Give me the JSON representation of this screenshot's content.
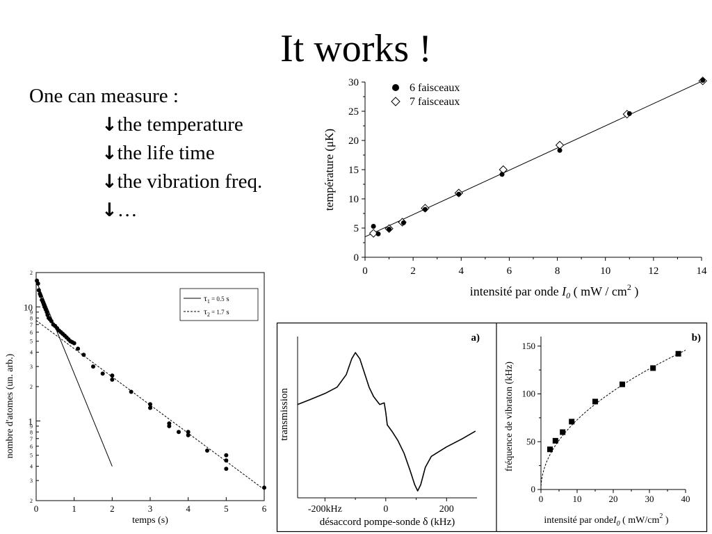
{
  "slide": {
    "title": "It works !",
    "intro": "One can measure :",
    "bullet_glyph": "↓",
    "bullets": [
      "the temperature",
      "the life time",
      "the vibration freq.",
      "…"
    ]
  },
  "chart_data": [
    {
      "type": "scatter",
      "id": "temperature",
      "xlabel": "intensité par onde",
      "xlabel_var": "I",
      "xlabel_var_sub": "0",
      "xlabel_unit": "( mW / cm",
      "xlabel_unit_sup": "2",
      "xlabel_unit_end": ")",
      "ylabel": "température (μK)",
      "xlim": [
        0,
        14
      ],
      "ylim": [
        0,
        30
      ],
      "xticks": [
        0,
        2,
        4,
        6,
        8,
        10,
        12,
        14
      ],
      "yticks": [
        0,
        5,
        10,
        15,
        20,
        25,
        30
      ],
      "legend_position": "top-left",
      "series": [
        {
          "name": "6 faisceaux",
          "marker": "filled-circle",
          "x": [
            0.35,
            0.55,
            1.0,
            1.6,
            2.5,
            3.9,
            5.7,
            8.1,
            11.0,
            14.05
          ],
          "y": [
            5.3,
            4.0,
            4.8,
            5.9,
            8.2,
            10.8,
            14.2,
            18.3,
            24.6,
            30.3
          ]
        },
        {
          "name": "7 faisceaux",
          "marker": "open-diamond",
          "x": [
            0.35,
            1.0,
            1.55,
            2.5,
            3.9,
            5.75,
            8.1,
            10.9,
            14.05
          ],
          "y": [
            4.1,
            4.9,
            6.0,
            8.4,
            11.0,
            15.0,
            19.2,
            24.5,
            30.2
          ]
        }
      ],
      "fit_line": {
        "x": [
          0,
          14.1
        ],
        "y": [
          3.5,
          30.3
        ]
      }
    },
    {
      "type": "scatter",
      "id": "lifetime",
      "xlabel": "temps (s)",
      "ylabel": "nombre d'atomes (un. arb.)",
      "yscale": "log",
      "xlim": [
        0,
        6
      ],
      "ylim": [
        0.2,
        20
      ],
      "xticks": [
        0,
        1,
        2,
        3,
        4,
        5,
        6
      ],
      "ytick_labels": [
        {
          "v": 20,
          "t": "2"
        },
        {
          "v": 10,
          "t": "10"
        },
        {
          "v": 9,
          "t": "9"
        },
        {
          "v": 8,
          "t": "8"
        },
        {
          "v": 7,
          "t": "7"
        },
        {
          "v": 6,
          "t": "6"
        },
        {
          "v": 5,
          "t": "5"
        },
        {
          "v": 4,
          "t": "4"
        },
        {
          "v": 3,
          "t": "3"
        },
        {
          "v": 2,
          "t": "2"
        },
        {
          "v": 1,
          "t": "1"
        },
        {
          "v": 0.9,
          "t": "9"
        },
        {
          "v": 0.8,
          "t": "8"
        },
        {
          "v": 0.7,
          "t": "7"
        },
        {
          "v": 0.6,
          "t": "6"
        },
        {
          "v": 0.5,
          "t": "5"
        },
        {
          "v": 0.4,
          "t": "4"
        },
        {
          "v": 0.3,
          "t": "3"
        },
        {
          "v": 0.2,
          "t": "2"
        }
      ],
      "legend_position": "top-right",
      "legend": [
        {
          "sym": "τ",
          "sub": "1",
          "label": " = 0.5",
          "unit": "s"
        },
        {
          "sym": "τ",
          "sub": "2",
          "label": " = 1.7",
          "unit": "s"
        }
      ],
      "fits": [
        {
          "style": "solid",
          "x": [
            0,
            2
          ],
          "y": [
            17,
            0.4
          ]
        },
        {
          "style": "dashed",
          "x": [
            0,
            6
          ],
          "y": [
            7.6,
            0.25
          ]
        }
      ],
      "points": {
        "x": [
          0.02,
          0.05,
          0.07,
          0.1,
          0.12,
          0.15,
          0.18,
          0.2,
          0.22,
          0.25,
          0.28,
          0.3,
          0.33,
          0.36,
          0.4,
          0.45,
          0.5,
          0.55,
          0.6,
          0.65,
          0.7,
          0.75,
          0.8,
          0.85,
          0.9,
          0.95,
          1.0,
          1.1,
          1.25,
          1.5,
          1.75,
          2.0,
          2.0,
          2.5,
          3.0,
          3.0,
          3.5,
          3.5,
          3.75,
          4.0,
          4.0,
          4.5,
          5.0,
          5.0,
          5.0,
          6.0
        ],
        "y": [
          17,
          16,
          14,
          13,
          12.5,
          11.5,
          11,
          10.5,
          10,
          9.5,
          9,
          8.5,
          8,
          7.8,
          7.5,
          7,
          6.8,
          6.5,
          6.2,
          6,
          5.8,
          5.6,
          5.4,
          5.2,
          5.0,
          4.9,
          4.8,
          4.3,
          3.8,
          3.0,
          2.6,
          2.3,
          2.5,
          1.8,
          1.4,
          1.3,
          0.95,
          0.9,
          0.8,
          0.8,
          0.75,
          0.55,
          0.5,
          0.45,
          0.38,
          0.26
        ]
      }
    },
    {
      "type": "line",
      "id": "transmission",
      "panel_label": "a)",
      "xlabel": "désaccord pompe-sonde",
      "xlabel_sym": "δ",
      "xlabel_unit": "(kHz)",
      "ylabel": "transmission",
      "xlim": [
        -290,
        300
      ],
      "xtick_labels": [
        {
          "v": -200,
          "t": "-200kHz"
        },
        {
          "v": 0,
          "t": "0"
        },
        {
          "v": 200,
          "t": "200"
        }
      ],
      "x": [
        -290,
        -250,
        -200,
        -160,
        -130,
        -112,
        -100,
        -85,
        -70,
        -55,
        -40,
        -20,
        -5,
        0,
        5,
        20,
        40,
        60,
        80,
        95,
        105,
        115,
        130,
        150,
        200,
        250,
        295
      ],
      "y": [
        0.55,
        0.58,
        0.62,
        0.66,
        0.74,
        0.84,
        0.88,
        0.84,
        0.75,
        0.66,
        0.6,
        0.55,
        0.56,
        0.5,
        0.42,
        0.38,
        0.32,
        0.24,
        0.13,
        0.04,
        0.0,
        0.04,
        0.15,
        0.22,
        0.28,
        0.33,
        0.38
      ]
    },
    {
      "type": "scatter",
      "id": "vibration",
      "panel_label": "b)",
      "xlabel": "intensité par onde",
      "xlabel_var": "I",
      "xlabel_var_sub": "0",
      "xlabel_unit": "( mW/cm",
      "xlabel_unit_sup": "2",
      "xlabel_unit_end": ")",
      "ylabel": "fréquence de vibraton (kHz)",
      "xlim": [
        0,
        40
      ],
      "ylim": [
        0,
        160
      ],
      "xticks": [
        0,
        10,
        20,
        30,
        40
      ],
      "yticks": [
        0,
        50,
        100,
        150
      ],
      "points": {
        "x": [
          2.5,
          4,
          6,
          8.5,
          15,
          22.5,
          31,
          38
        ],
        "y": [
          42,
          51,
          60,
          71,
          92,
          110,
          127,
          142
        ]
      },
      "fit": "sqrt"
    }
  ]
}
